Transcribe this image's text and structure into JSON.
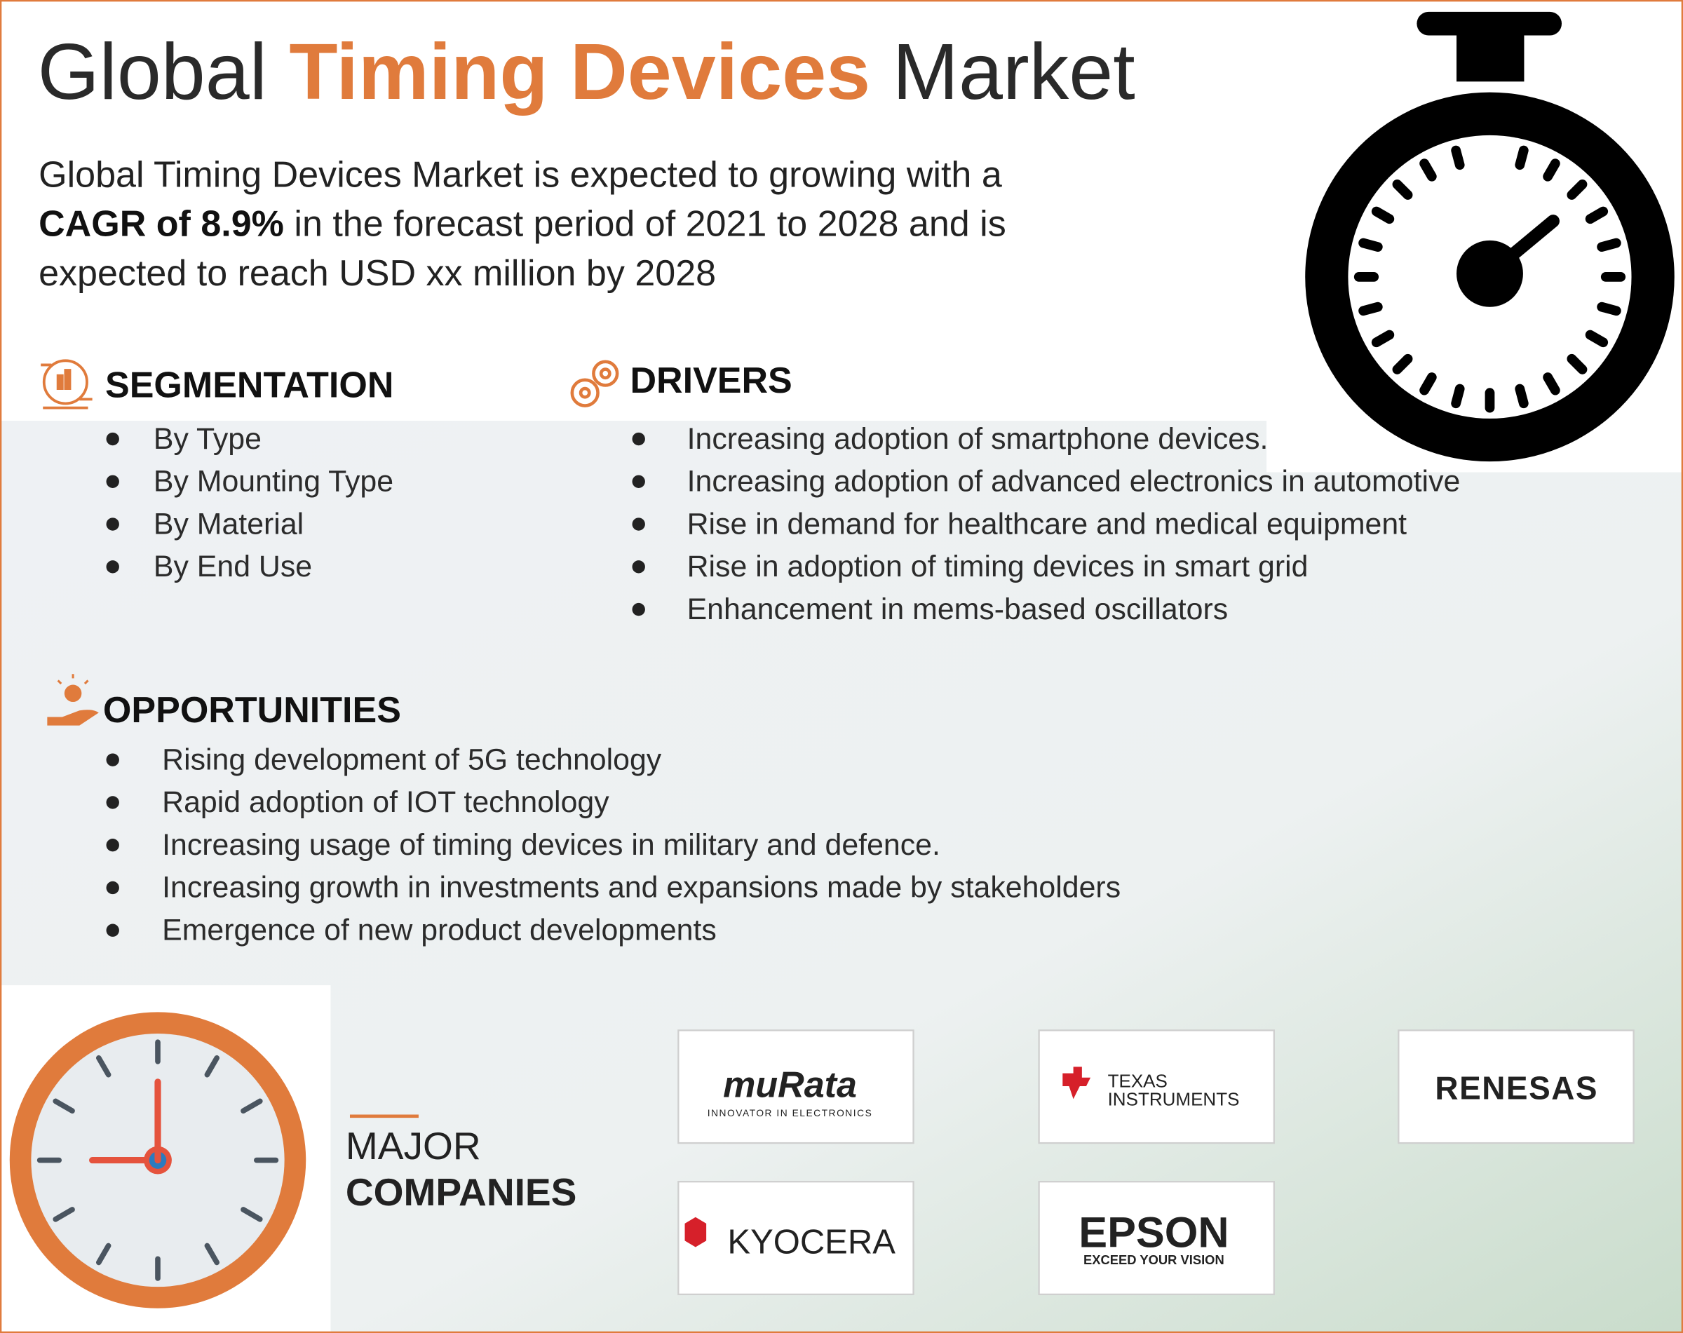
{
  "header": {
    "title_start": "Global",
    "title_highlight": "Timing Devices",
    "title_end": "Market"
  },
  "intro": {
    "line1": "Global Timing Devices Market is expected to growing with a",
    "line2_bold": "CAGR of 8.9%",
    "line2_rest": "in the forecast period of 2021 to 2028 and is",
    "line3": "expected to reach USD xx million by 2028"
  },
  "segmentation": {
    "heading": "SEGMENTATION",
    "items": [
      "By Type",
      "By Mounting Type",
      "By Material",
      "By End Use"
    ]
  },
  "drivers": {
    "heading": "DRIVERS",
    "items": [
      "Increasing adoption of smartphone devices.",
      "Increasing adoption of advanced electronics in automotive",
      "Rise in demand for healthcare and medical equipment",
      "Rise in adoption of timing devices in smart grid",
      "Enhancement in mems-based oscillators"
    ]
  },
  "opportunities": {
    "heading": "OPPORTUNITIES",
    "items": [
      "Rising development of 5G technology",
      "Rapid adoption of IOT technology",
      "Increasing usage of timing devices in military and defence.",
      "Increasing growth in investments and expansions made by stakeholders",
      "Emergence of new product developments"
    ]
  },
  "companies": {
    "heading_line1": "MAJOR",
    "heading_line2": "COMPANIES",
    "logos": [
      {
        "name": "muRata",
        "tagline": "INNOVATOR IN ELECTRONICS"
      },
      {
        "name_line1": "TEXAS",
        "name_line2": "INSTRUMENTS"
      },
      {
        "name": "RENESAS"
      },
      {
        "name": "KYOCERA"
      },
      {
        "name": "EPSON",
        "tagline": "EXCEED YOUR VISION"
      }
    ]
  }
}
